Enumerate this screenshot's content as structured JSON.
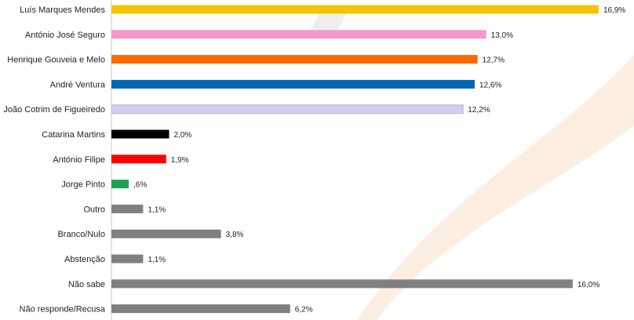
{
  "chart_data": {
    "type": "bar",
    "orientation": "horizontal",
    "categories": [
      "Luís Marques Mendes",
      "António José Seguro",
      "Henrique Gouveia e Melo",
      "André Ventura",
      "João Cotrim de Figueiredo",
      "Catarina Martins",
      "António Filipe",
      "Jorge Pinto",
      "Outro",
      "Branco/Nulo",
      "Abstenção",
      "Não sabe",
      "Não responde/Recusa"
    ],
    "values": [
      16.9,
      13.0,
      12.7,
      12.6,
      12.2,
      2.0,
      1.9,
      0.6,
      1.1,
      3.8,
      1.1,
      16.0,
      6.2
    ],
    "value_labels": [
      "16,9%",
      "13,0%",
      "12,7%",
      "12,6%",
      "12,2%",
      "2,0%",
      "1,9%",
      ",6%",
      "1,1%",
      "3,8%",
      "1,1%",
      "16,0%",
      "6,2%"
    ],
    "colors": [
      "#F5C400",
      "#F59AC8",
      "#FF6A00",
      "#0066B3",
      "#D0D0EE",
      "#000000",
      "#FF0000",
      "#1EA050",
      "#808080",
      "#808080",
      "#808080",
      "#808080",
      "#808080"
    ],
    "xlim": [
      0,
      17.5
    ],
    "grid": false,
    "legend": "none",
    "title": "",
    "xlabel": "",
    "ylabel": ""
  }
}
